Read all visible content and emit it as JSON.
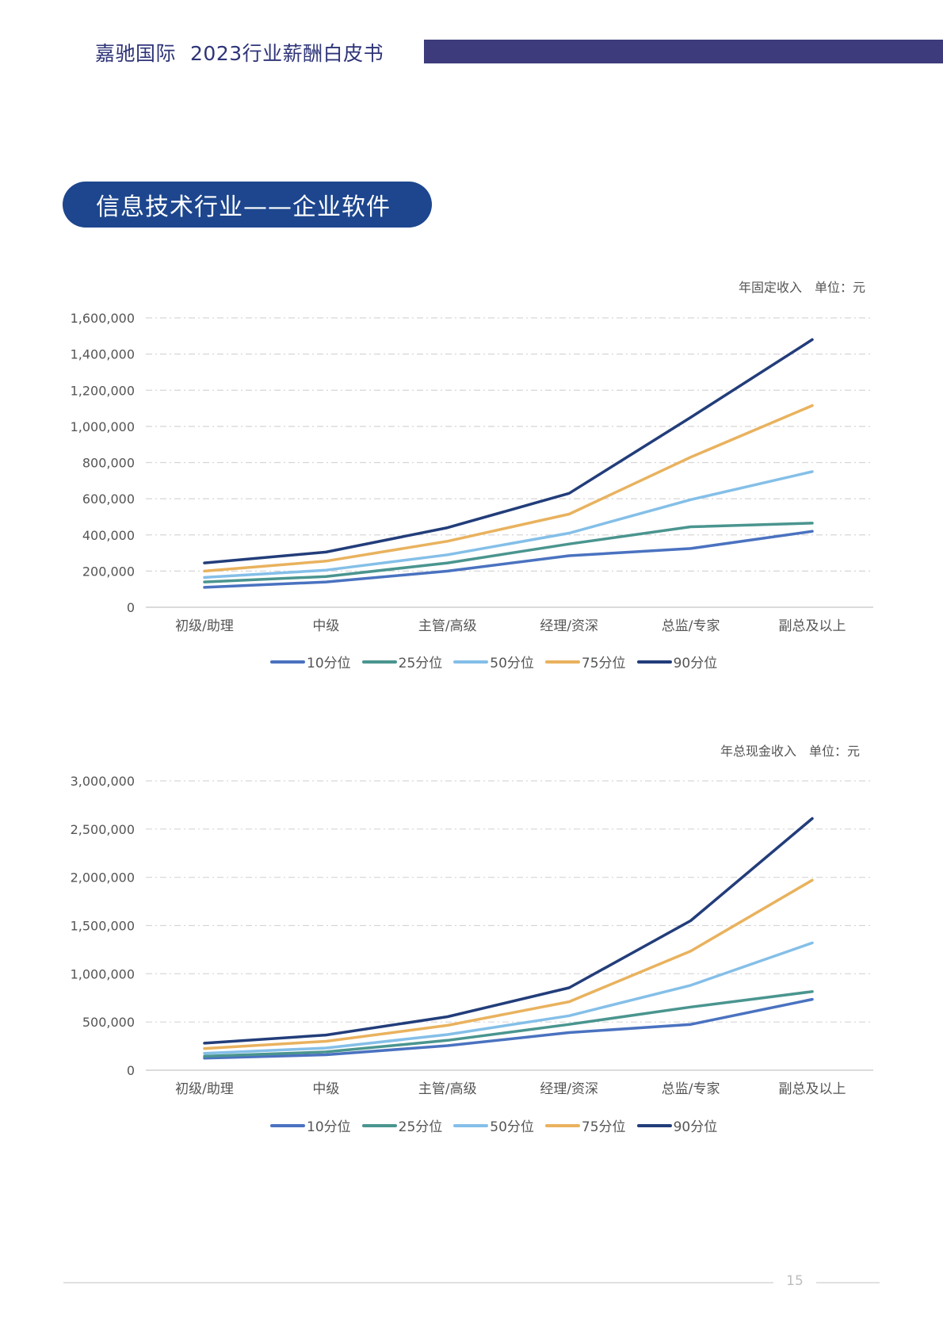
{
  "header": {
    "brand": "嘉驰国际",
    "report_title": "2023行业薪酬白皮书"
  },
  "section_title": "信息技术行业——企业软件",
  "colors": {
    "header_bar": "#3d3b7c",
    "pill": "#1d468e",
    "p10": "#4a72c0",
    "p25": "#4a958f",
    "p50": "#84bfe8",
    "p75": "#e9b25e",
    "p90": "#223d7a"
  },
  "chart_data": [
    {
      "type": "line",
      "title": "年固定收入",
      "unit_label": "单位：元",
      "categories": [
        "初级/助理",
        "中级",
        "主管/高级",
        "经理/资深",
        "总监/专家",
        "副总及以上"
      ],
      "y_ticks": [
        "0",
        "200,000",
        "400,000",
        "600,000",
        "800,000",
        "1,000,000",
        "1,200,000",
        "1,400,000",
        "1,600,000"
      ],
      "ylim": [
        0,
        1600000
      ],
      "grid": true,
      "legend_position": "bottom",
      "series": [
        {
          "name": "10分位",
          "color_key": "p10",
          "values": [
            110000,
            140000,
            200000,
            285000,
            325000,
            420000
          ]
        },
        {
          "name": "25分位",
          "color_key": "p25",
          "values": [
            140000,
            170000,
            245000,
            350000,
            445000,
            465000
          ]
        },
        {
          "name": "50分位",
          "color_key": "p50",
          "values": [
            165000,
            205000,
            290000,
            410000,
            595000,
            750000
          ]
        },
        {
          "name": "75分位",
          "color_key": "p75",
          "values": [
            200000,
            255000,
            365000,
            515000,
            830000,
            1115000
          ]
        },
        {
          "name": "90分位",
          "color_key": "p90",
          "values": [
            245000,
            305000,
            440000,
            630000,
            1050000,
            1480000
          ]
        }
      ]
    },
    {
      "type": "line",
      "title": "年总现金收入",
      "unit_label": "单位：元",
      "categories": [
        "初级/助理",
        "中级",
        "主管/高级",
        "经理/资深",
        "总监/专家",
        "副总及以上"
      ],
      "y_ticks": [
        "0",
        "500,000",
        "1,000,000",
        "1,500,000",
        "2,000,000",
        "2,500,000",
        "3,000,000"
      ],
      "ylim": [
        0,
        3000000
      ],
      "grid": true,
      "legend_position": "bottom",
      "series": [
        {
          "name": "10分位",
          "color_key": "p10",
          "values": [
            125000,
            160000,
            255000,
            390000,
            475000,
            735000
          ]
        },
        {
          "name": "25分位",
          "color_key": "p25",
          "values": [
            145000,
            190000,
            310000,
            475000,
            655000,
            815000
          ]
        },
        {
          "name": "50分位",
          "color_key": "p50",
          "values": [
            175000,
            230000,
            370000,
            565000,
            880000,
            1320000
          ]
        },
        {
          "name": "75分位",
          "color_key": "p75",
          "values": [
            225000,
            300000,
            465000,
            710000,
            1235000,
            1970000
          ]
        },
        {
          "name": "90分位",
          "color_key": "p90",
          "values": [
            280000,
            365000,
            555000,
            855000,
            1550000,
            2610000
          ]
        }
      ]
    }
  ],
  "footer": {
    "page_number": "15"
  }
}
